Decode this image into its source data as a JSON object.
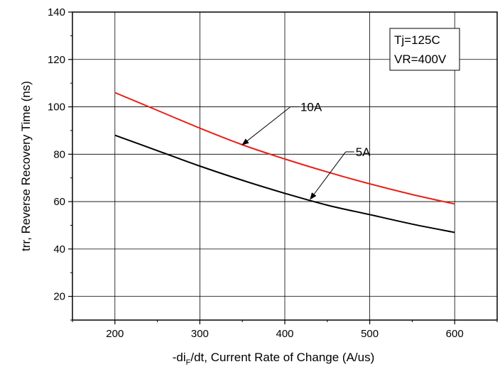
{
  "chart_data": {
    "type": "line",
    "xlabel_parts": [
      "-di",
      "F",
      "/dt, Current Rate of Change (A/us)"
    ],
    "ylabel": "trr, Reverse Recovery Time (ns)",
    "xlim": [
      150,
      650
    ],
    "ylim": [
      10,
      140
    ],
    "xticks": [
      200,
      300,
      400,
      500,
      600
    ],
    "yticks": [
      20,
      40,
      60,
      80,
      100,
      120,
      140
    ],
    "grid": true,
    "conditions": [
      "Tj=125C",
      "VR=400V"
    ],
    "series": [
      {
        "name": "10A",
        "color": "#e8201a",
        "x": [
          200,
          250,
          300,
          350,
          400,
          450,
          500,
          550,
          600
        ],
        "y": [
          106,
          98.5,
          91,
          84,
          78,
          72.5,
          67.5,
          63,
          59
        ]
      },
      {
        "name": "5A",
        "color": "#000000",
        "x": [
          200,
          250,
          300,
          350,
          400,
          450,
          500,
          550,
          600
        ],
        "y": [
          88,
          81.5,
          75,
          69,
          63.5,
          58.5,
          54.5,
          50.5,
          47
        ]
      }
    ],
    "annotations": [
      {
        "text": "10A",
        "target_series": 0,
        "target_x": 350,
        "target_y": 84,
        "label_x": 410,
        "label_y": 100
      },
      {
        "text": "5A",
        "target_series": 1,
        "target_x": 430,
        "target_y": 61,
        "label_x": 475,
        "label_y": 81
      }
    ]
  }
}
